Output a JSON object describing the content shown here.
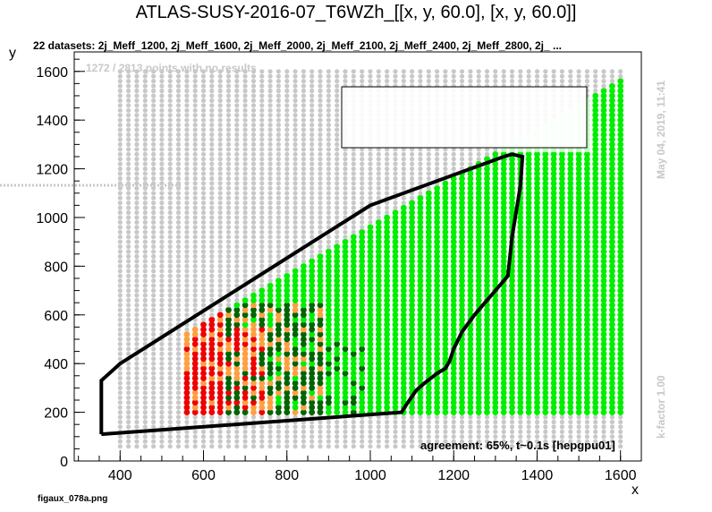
{
  "chart_data": {
    "type": "scatter",
    "title": "ATLAS-SUSY-2016-07_T6WZh_[[x, y, 60.0], [x, y, 60.0]]",
    "subtitle": "22 datasets: 2j_Meff_1200, 2j_Meff_1600, 2j_Meff_2000, 2j_Meff_2100, 2j_Meff_2400, 2j_Meff_2800, 2j_  ...",
    "xlabel": "x",
    "ylabel": "y",
    "xlim": [
      290,
      1650
    ],
    "ylim": [
      0,
      1680
    ],
    "x_ticks": [
      400,
      600,
      800,
      1000,
      1200,
      1400,
      1600
    ],
    "y_ticks": [
      0,
      200,
      400,
      600,
      800,
      1000,
      1200,
      1400,
      1600
    ],
    "grid": false,
    "no_results_note": "1272 / 2813 points with no results",
    "agreement_note": "agreement: 65%, t~0.1s [hepgpu01]",
    "date_note": "May 04, 2019, 11:41",
    "kfactor_note": "k-factor 1.00",
    "footer": "figaux_078a.png",
    "colors": {
      "no_result": "#c8c8c8",
      "allowed_both": "#00ee00",
      "excluded_both": "#ee0000",
      "excluded_official_only": "#ffa040",
      "excluded_smodels_only": "#006400",
      "exclusion_line": "#000000"
    },
    "exclusion_contour": [
      [
        355,
        110
      ],
      [
        1075,
        200
      ],
      [
        1090,
        240
      ],
      [
        1110,
        290
      ],
      [
        1130,
        320
      ],
      [
        1160,
        360
      ],
      [
        1180,
        380
      ],
      [
        1190,
        410
      ],
      [
        1200,
        460
      ],
      [
        1220,
        530
      ],
      [
        1250,
        600
      ],
      [
        1290,
        680
      ],
      [
        1330,
        760
      ],
      [
        1340,
        920
      ],
      [
        1360,
        1130
      ],
      [
        1365,
        1250
      ],
      [
        1340,
        1260
      ],
      [
        1320,
        1250
      ],
      [
        1000,
        1050
      ],
      [
        400,
        400
      ],
      [
        355,
        330
      ],
      [
        355,
        110
      ]
    ],
    "legend_box": {
      "x": [
        945,
        1535
      ],
      "y": [
        1285,
        1530
      ],
      "fill": "#ffffff"
    }
  }
}
